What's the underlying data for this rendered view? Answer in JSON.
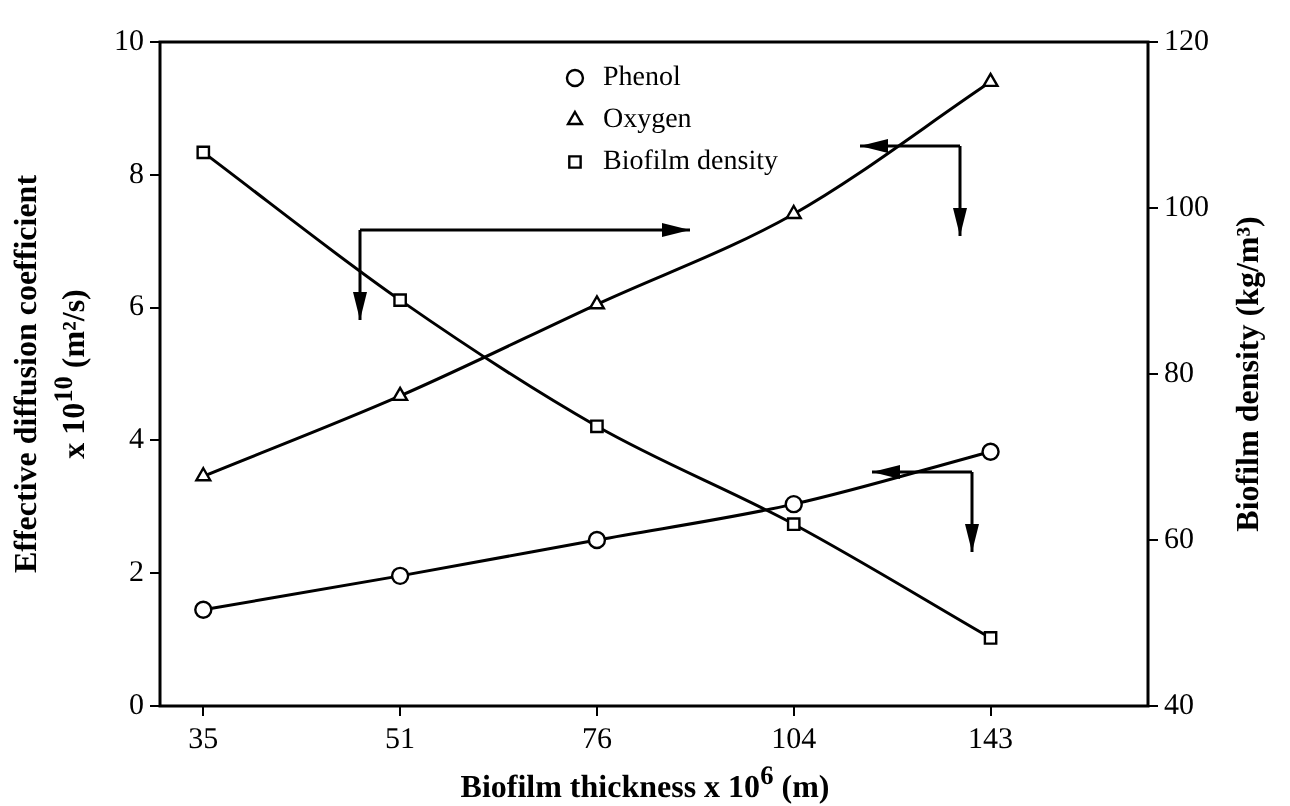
{
  "chart_data": {
    "type": "line",
    "xlabel": "Biofilm thickness x 10$^{6}$ (m)",
    "ylabel": "Effective diffusion coefficient\nx 10$^{10}$ (m²/s)",
    "y2label": "Biofilm density  (kg/m³)",
    "categories": [
      "35",
      "51",
      "76",
      "104",
      "143"
    ],
    "series": [
      {
        "name": "Phenol",
        "color": "#000000",
        "marker": "circle",
        "values": [
          1.45,
          1.96,
          2.5,
          3.04,
          3.83
        ]
      },
      {
        "name": "Oxygen",
        "color": "#000000",
        "marker": "triangle",
        "values": [
          3.46,
          4.67,
          6.05,
          7.41,
          9.4
        ]
      },
      {
        "name": "Biofilm density",
        "color": "#000000",
        "marker": "square",
        "axis": "y2",
        "values": [
          106.7,
          88.9,
          73.7,
          61.9,
          48.2
        ]
      }
    ],
    "ylim": [
      0,
      10
    ],
    "yticks": [
      0,
      2,
      4,
      6,
      8,
      10
    ],
    "y2lim": [
      40,
      120
    ],
    "y2ticks": [
      40,
      60,
      80,
      100,
      120
    ],
    "grid": false,
    "legend": "top",
    "line_style": "solid"
  }
}
